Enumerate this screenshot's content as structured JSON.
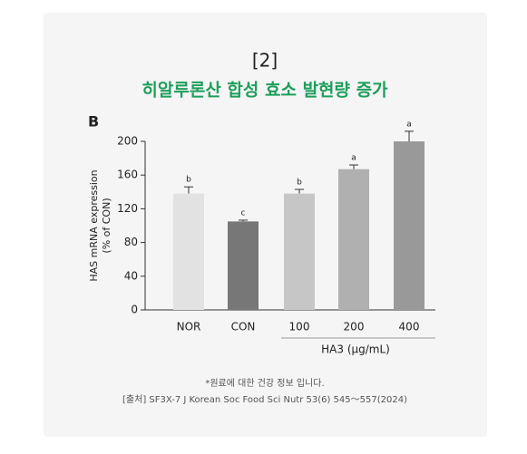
{
  "chart_data": {
    "type": "bar",
    "title": "[2]",
    "subtitle": "히알루론산 합성 효소 발현량 증가",
    "panel_label": "B",
    "ylabel": [
      "HAS mRNA expression",
      "(% of CON)"
    ],
    "categories": [
      "NOR",
      "CON",
      "100",
      "200",
      "400"
    ],
    "values": [
      138,
      105,
      138,
      167,
      200
    ],
    "errors": [
      8,
      1.5,
      5,
      5,
      12
    ],
    "colors": [
      "#e2e2e2",
      "#777777",
      "#c6c6c6",
      "#b0b0b0",
      "#999999"
    ],
    "letters": [
      "b",
      "c",
      "b",
      "a",
      "a"
    ],
    "group_label": "HA3 (μg/mL)",
    "ylim": [
      0,
      200
    ],
    "yticks": [
      0,
      40,
      80,
      120,
      160,
      200
    ],
    "notes": [
      "*원료에 대한 건강 정보 입니다.",
      "[출처] SF3X-7 J Korean Soc Food Sci Nutr 53(6) 545〜557(2024)"
    ]
  }
}
